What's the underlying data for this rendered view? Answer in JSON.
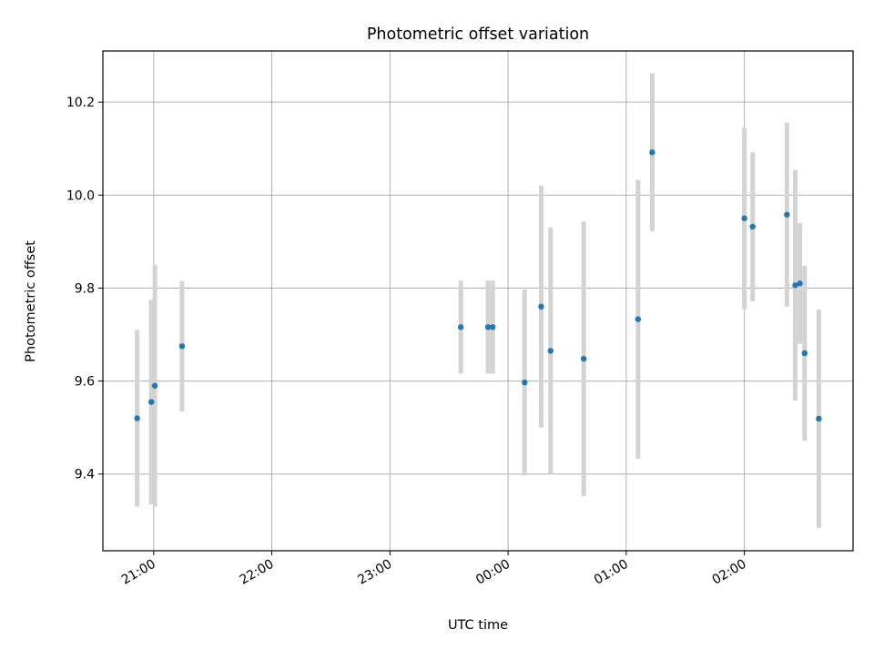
{
  "chart_data": {
    "type": "scatter",
    "title": "Photometric offset variation",
    "xlabel": "UTC time",
    "ylabel": "Photometric offset",
    "xlim": [
      20.57,
      26.92
    ],
    "ylim": [
      9.235,
      10.31
    ],
    "x_unit": "hours since 00:00 of first night (values above 24 are after midnight)",
    "xticks": [
      {
        "value": 21,
        "label": "21:00"
      },
      {
        "value": 22,
        "label": "22:00"
      },
      {
        "value": 23,
        "label": "23:00"
      },
      {
        "value": 24,
        "label": "00:00"
      },
      {
        "value": 25,
        "label": "01:00"
      },
      {
        "value": 26,
        "label": "02:00"
      }
    ],
    "yticks": [
      {
        "value": 9.4,
        "label": "9.4"
      },
      {
        "value": 9.6,
        "label": "9.6"
      },
      {
        "value": 9.8,
        "label": "9.8"
      },
      {
        "value": 10.0,
        "label": "10.0"
      },
      {
        "value": 10.2,
        "label": "10.2"
      }
    ],
    "grid": true,
    "series": [
      {
        "name": "offset",
        "marker_color": "#1f77b4",
        "errorbar_color": "#d3d3d3",
        "points": [
          {
            "x": 20.86,
            "y": 9.52,
            "yerr": 0.19
          },
          {
            "x": 20.98,
            "y": 9.555,
            "yerr": 0.22
          },
          {
            "x": 21.01,
            "y": 9.59,
            "yerr": 0.26
          },
          {
            "x": 21.24,
            "y": 9.675,
            "yerr": 0.14
          },
          {
            "x": 23.6,
            "y": 9.716,
            "yerr": 0.1
          },
          {
            "x": 23.83,
            "y": 9.716,
            "yerr": 0.1
          },
          {
            "x": 23.87,
            "y": 9.716,
            "yerr": 0.1
          },
          {
            "x": 24.14,
            "y": 9.597,
            "yerr": 0.2
          },
          {
            "x": 24.28,
            "y": 9.76,
            "yerr": 0.26
          },
          {
            "x": 24.36,
            "y": 9.665,
            "yerr": 0.265
          },
          {
            "x": 24.64,
            "y": 9.648,
            "yerr": 0.295
          },
          {
            "x": 25.1,
            "y": 9.733,
            "yerr": 0.3
          },
          {
            "x": 25.22,
            "y": 10.092,
            "yerr": 0.17
          },
          {
            "x": 26.0,
            "y": 9.95,
            "yerr": 0.195
          },
          {
            "x": 26.07,
            "y": 9.932,
            "yerr": 0.16
          },
          {
            "x": 26.36,
            "y": 9.958,
            "yerr": 0.198
          },
          {
            "x": 26.43,
            "y": 9.806,
            "yerr": 0.248
          },
          {
            "x": 26.47,
            "y": 9.81,
            "yerr": 0.13
          },
          {
            "x": 26.51,
            "y": 9.66,
            "yerr": 0.188
          },
          {
            "x": 26.63,
            "y": 9.519,
            "yerr": 0.235
          }
        ]
      }
    ]
  }
}
